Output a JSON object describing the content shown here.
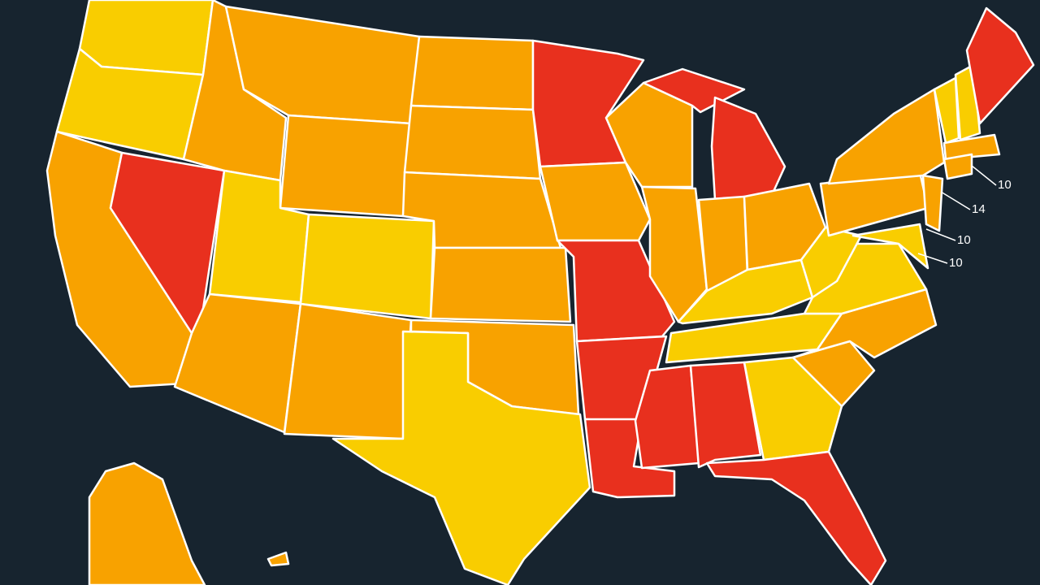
{
  "labels": [
    "10",
    "14",
    "10",
    "10"
  ]
}
